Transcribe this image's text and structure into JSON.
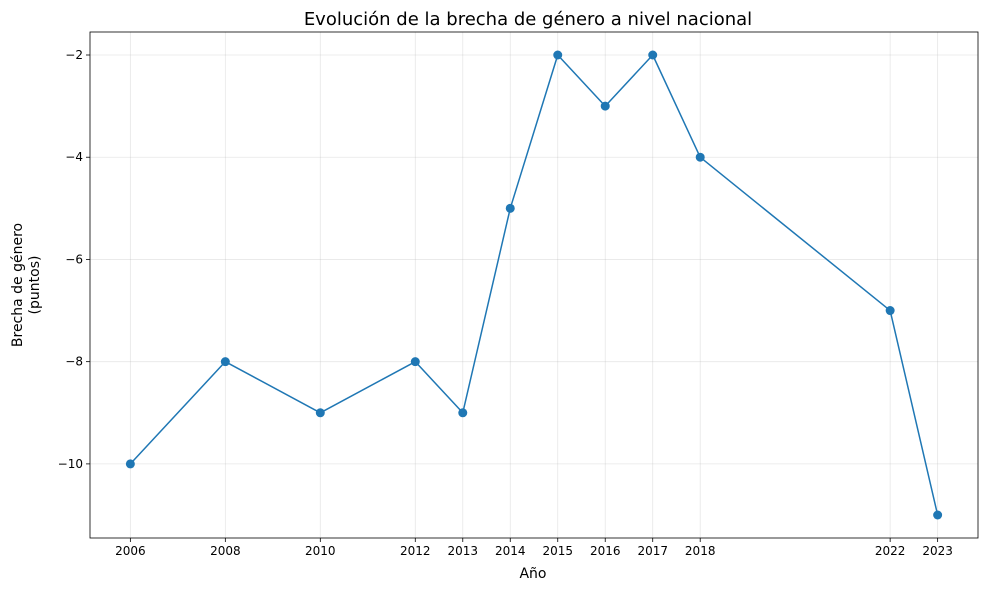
{
  "chart_data": {
    "type": "line",
    "title": "Evolución de la brecha de género a nivel nacional",
    "xlabel": "Año",
    "ylabel": [
      "Brecha de género",
      "(puntos)"
    ],
    "x": [
      2006,
      2008,
      2010,
      2012,
      2013,
      2014,
      2015,
      2016,
      2017,
      2018,
      2022,
      2023
    ],
    "xtick_labels": [
      "2006",
      "2008",
      "2010",
      "2012",
      "2013",
      "2014",
      "2015",
      "2016",
      "2017",
      "2018",
      "2022",
      "2023"
    ],
    "series": [
      {
        "values": [
          -10,
          -8,
          -9,
          -8,
          -9,
          -5,
          -2,
          -3,
          -2,
          -4,
          -7,
          -11
        ],
        "color": "#1f77b4",
        "marker": "circle"
      }
    ],
    "yticks": [
      -10,
      -8,
      -6,
      -4,
      -2
    ],
    "ytick_labels": [
      "−10",
      "−8",
      "−6",
      "−4",
      "−2"
    ],
    "xlim": [
      2005.15,
      2023.85
    ],
    "ylim": [
      -11.45,
      -1.55
    ],
    "grid": true
  }
}
